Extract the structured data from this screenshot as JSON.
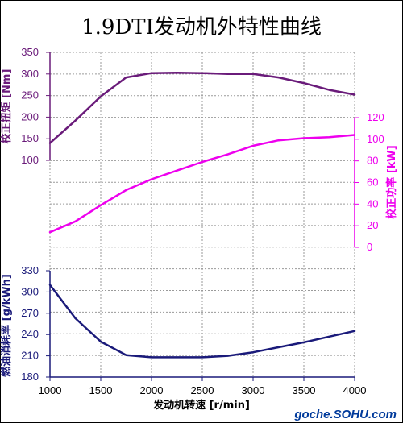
{
  "chart_data": {
    "type": "line",
    "title": "1.9DTI发动机外特性曲线",
    "xlabel": "发动机转速 [r/min]",
    "x_ticks": [
      1000,
      1500,
      2000,
      2500,
      3000,
      3500,
      4000
    ],
    "xlim": [
      1000,
      4000
    ],
    "grid": true,
    "axes": [
      {
        "id": "torque",
        "label": "校正扭矩 [Nm]",
        "side": "left",
        "color": "#6a1b7a",
        "ticks": [
          100,
          150,
          200,
          250,
          300,
          350
        ],
        "ylim": [
          100,
          350
        ]
      },
      {
        "id": "power",
        "label": "校正功率 [kW]",
        "side": "right",
        "color": "#ee00ee",
        "ticks": [
          0,
          20,
          40,
          60,
          80,
          100,
          120
        ],
        "ylim": [
          0,
          120
        ]
      },
      {
        "id": "bsfc",
        "label": "燃油消耗率 [g/kWh]",
        "side": "left",
        "color": "#1a1a7a",
        "ticks": [
          180,
          210,
          240,
          270,
          300,
          330
        ],
        "ylim": [
          180,
          330
        ]
      }
    ],
    "series": [
      {
        "axis": "torque",
        "x": [
          1000,
          1250,
          1500,
          1750,
          2000,
          2250,
          2500,
          2750,
          3000,
          3250,
          3500,
          3750,
          4000
        ],
        "values": [
          140,
          192,
          248,
          292,
          302,
          303,
          302,
          300,
          300,
          292,
          279,
          263,
          252
        ]
      },
      {
        "axis": "power",
        "x": [
          1000,
          1250,
          1500,
          1750,
          2000,
          2250,
          2500,
          2750,
          3000,
          3250,
          3500,
          3750,
          4000
        ],
        "values": [
          14,
          24,
          39,
          53,
          63,
          71,
          79,
          86,
          94,
          99,
          101,
          102,
          104
        ]
      },
      {
        "axis": "bsfc",
        "x": [
          1000,
          1250,
          1500,
          1750,
          2000,
          2250,
          2500,
          2750,
          3000,
          3250,
          3500,
          3750,
          4000
        ],
        "values": [
          310,
          263,
          230,
          211,
          208,
          208,
          208,
          210,
          215,
          222,
          229,
          237,
          245
        ]
      }
    ]
  },
  "watermark": "goche.SOHU.com"
}
